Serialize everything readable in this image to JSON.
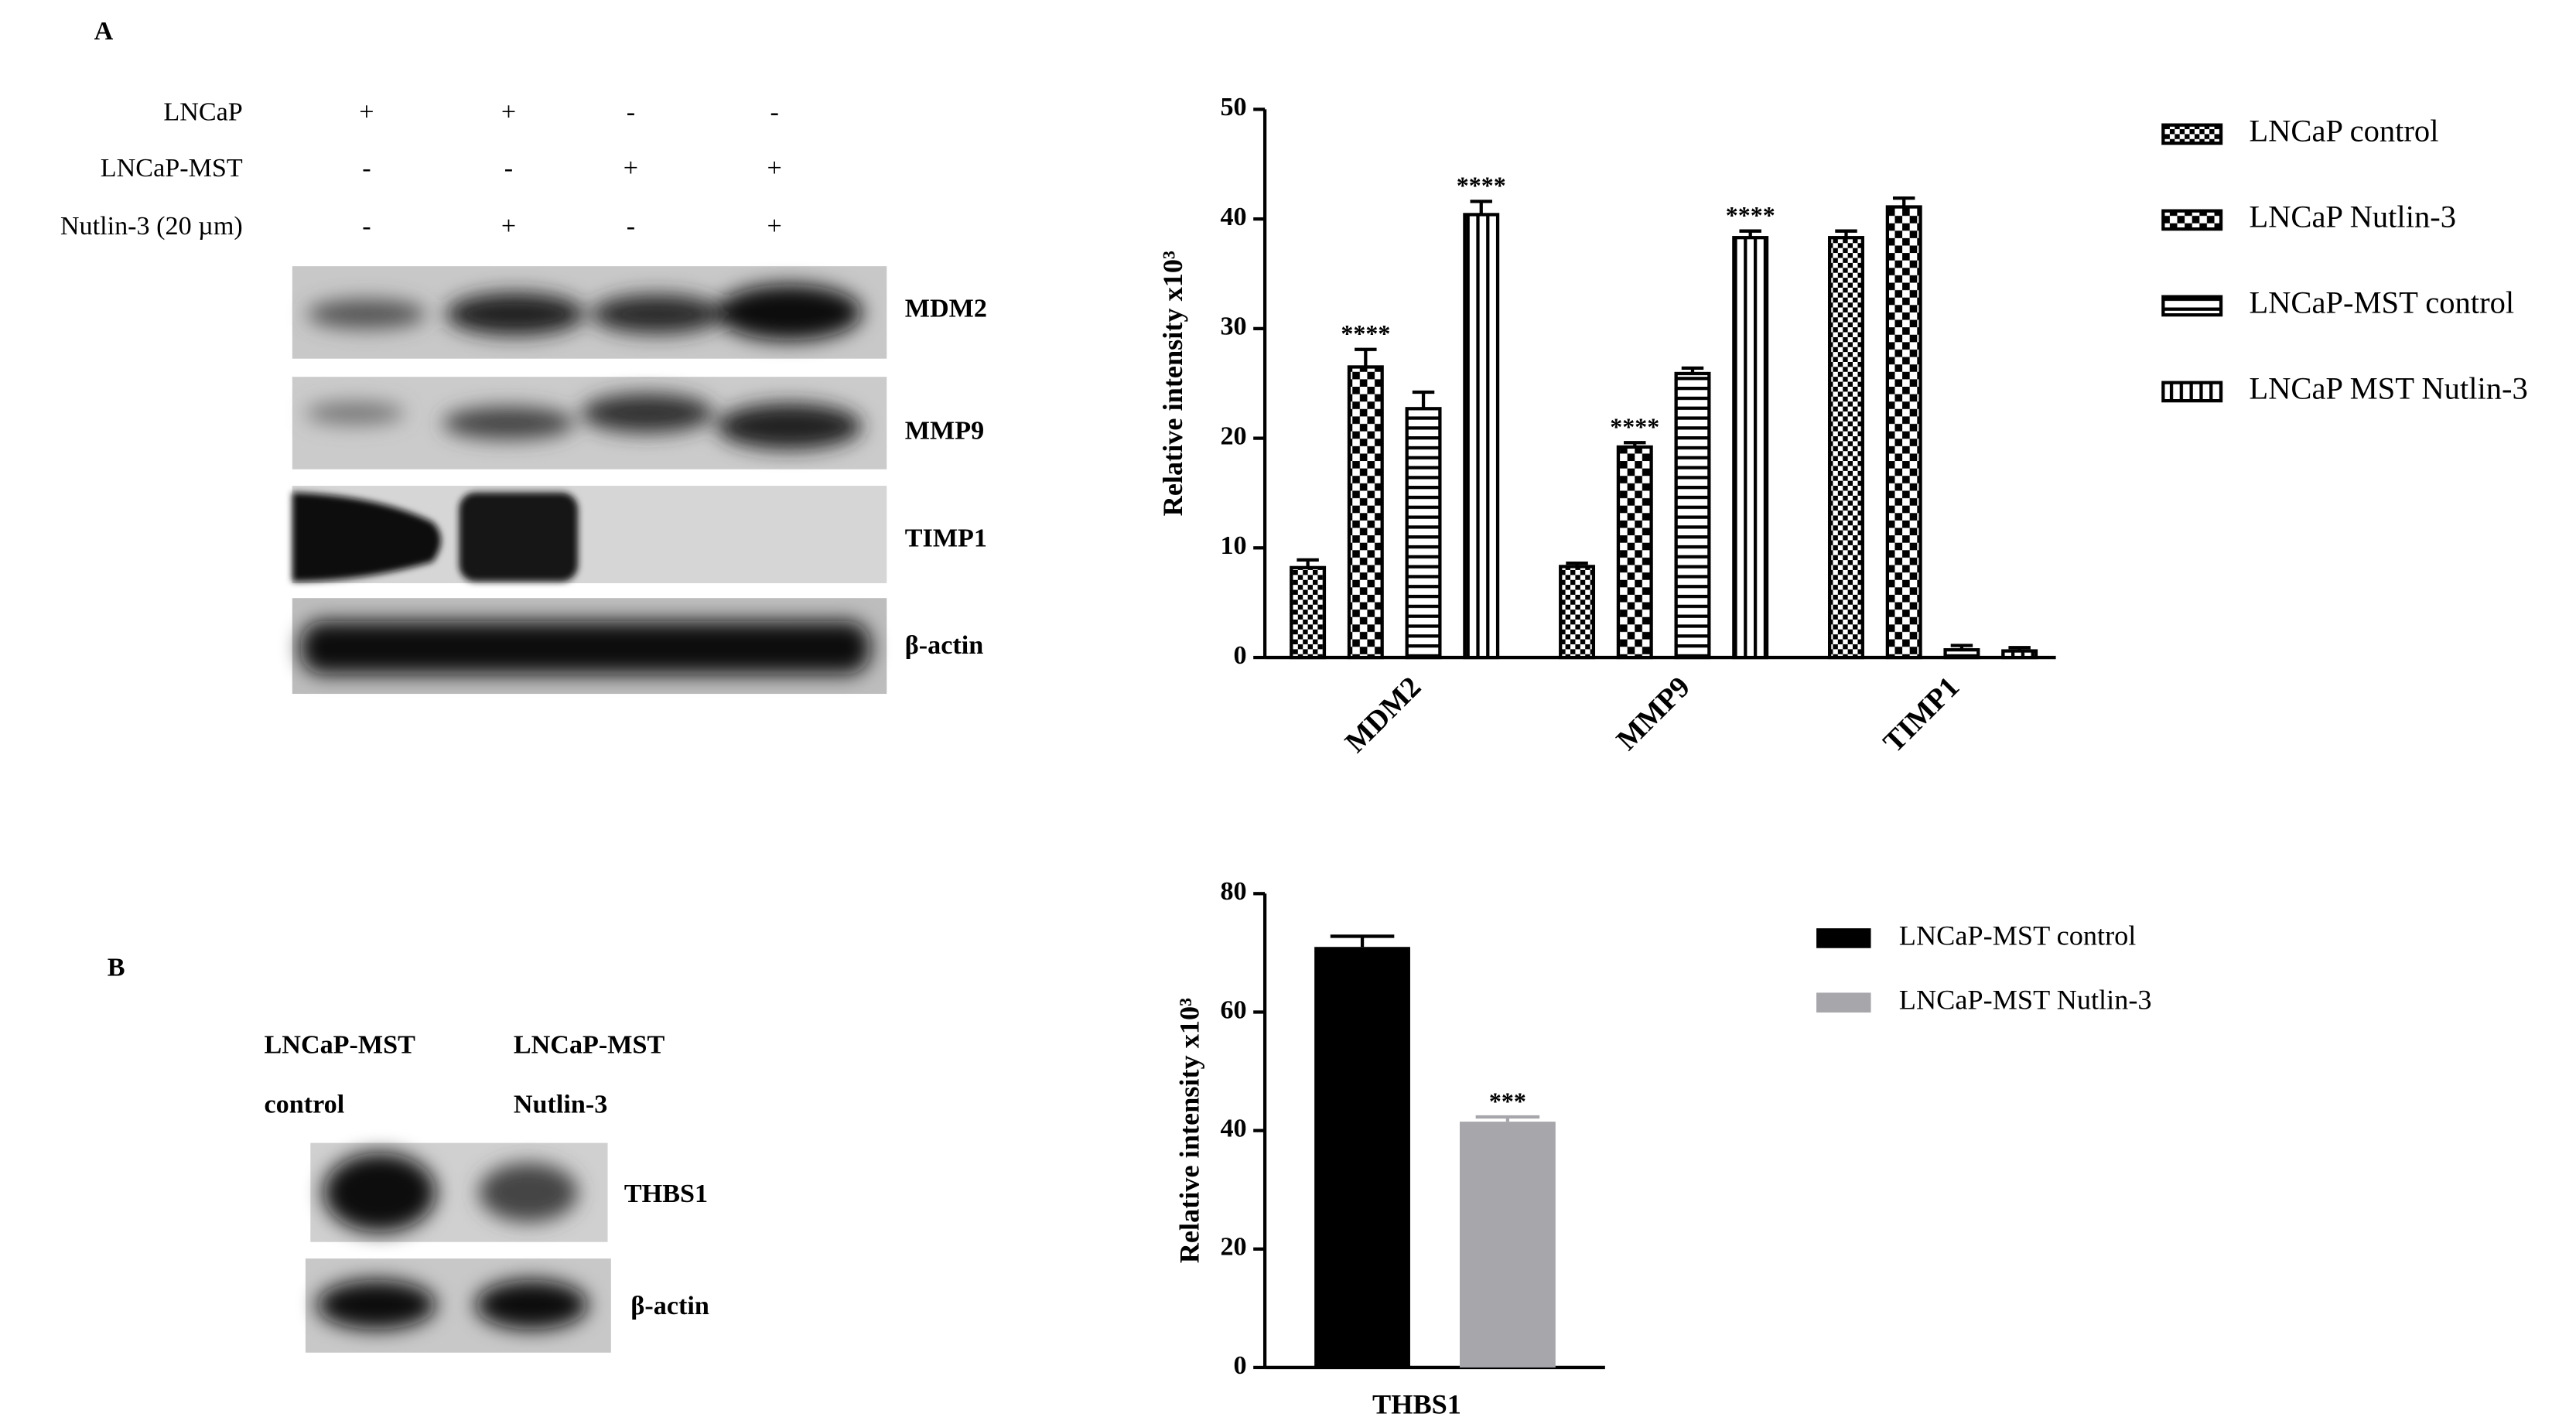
{
  "panel_a": {
    "label": "A",
    "rows": [
      {
        "name": "LNCaP",
        "signs": [
          "+",
          "+",
          "-",
          "-"
        ]
      },
      {
        "name": "LNCaP-MST",
        "signs": [
          "-",
          "-",
          "+",
          "+"
        ]
      },
      {
        "name": "Nutlin-3 (20  µm)",
        "signs": [
          "-",
          "+",
          "-",
          "+"
        ]
      }
    ],
    "blots": [
      "MDM2",
      "MMP9",
      "TIMP1",
      "β-actin"
    ]
  },
  "panel_b": {
    "label": "B",
    "columns": [
      [
        "LNCaP-MST",
        "control"
      ],
      [
        "LNCaP-MST",
        "Nutlin-3"
      ]
    ],
    "blots": [
      "THBS1",
      "β-actin"
    ]
  },
  "chart_data": [
    {
      "type": "bar",
      "y_label": "Relative  intensity x10³",
      "categories": [
        "MDM2",
        "MMP9",
        "TIMP1"
      ],
      "ylim": [
        0,
        50
      ],
      "yticks": [
        0,
        10,
        20,
        30,
        40,
        50
      ],
      "grid": false,
      "series": [
        {
          "name": "LNCaP control",
          "color": "#000000",
          "pattern": "checker-small",
          "values": [
            8.2,
            8.3,
            38.3
          ],
          "errors": [
            0.7,
            0.3,
            0.6
          ]
        },
        {
          "name": "LNCaP Nutlin-3",
          "color": "#000000",
          "pattern": "checker",
          "values": [
            26.5,
            19.2,
            41.1
          ],
          "errors": [
            1.6,
            0.4,
            0.8
          ],
          "significance": [
            "****",
            "****",
            null
          ]
        },
        {
          "name": "LNCaP-MST control",
          "color": "#000000",
          "pattern": "hlines",
          "values": [
            22.7,
            25.9,
            0.7
          ],
          "errors": [
            1.5,
            0.5,
            0.4
          ]
        },
        {
          "name": "LNCaP MST Nutlin-3",
          "color": "#000000",
          "pattern": "vlines",
          "values": [
            40.4,
            38.3,
            0.6
          ],
          "errors": [
            1.2,
            0.6,
            0.3
          ],
          "significance": [
            "****",
            "****",
            null
          ]
        }
      ]
    },
    {
      "type": "bar",
      "y_label": "Relative intensity x10³",
      "categories": [
        "THBS1"
      ],
      "ylim": [
        0,
        80
      ],
      "yticks": [
        0,
        20,
        40,
        60,
        80
      ],
      "grid": false,
      "series": [
        {
          "name": "LNCaP-MST control",
          "color": "#000000",
          "pattern": "solid",
          "values": [
            71
          ],
          "errors": [
            1.8
          ]
        },
        {
          "name": "LNCaP-MST Nutlin-3",
          "color": "#a6a6ab",
          "pattern": "solid",
          "values": [
            41.5
          ],
          "errors": [
            0.8
          ],
          "significance": [
            "***"
          ]
        }
      ]
    }
  ]
}
